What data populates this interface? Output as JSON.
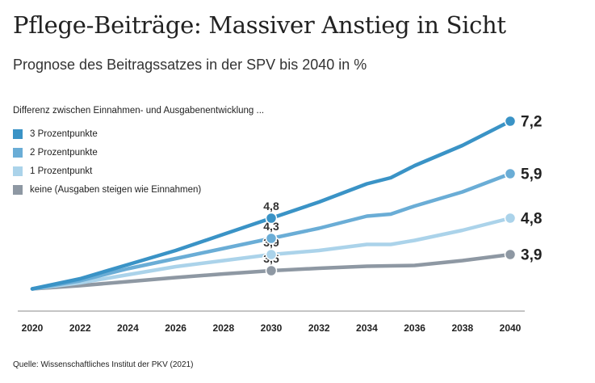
{
  "title": "Pflege-Beiträge: Massiver Anstieg in Sicht",
  "subtitle": "Prognose des Beitragssatzes in der SPV bis 2040 in %",
  "legend_title": "Differenz zwischen Einnahmen- und Ausgabenentwicklung ...",
  "source": "Quelle: Wissenschaftliches Institut der PKV (2021)",
  "colors": {
    "series": [
      "#3a93c6",
      "#6aadd6",
      "#abd3ea",
      "#8e98a3"
    ],
    "axis": "#888888",
    "text": "#222222"
  },
  "chart_data": {
    "type": "line",
    "title": "Pflege-Beiträge: Massiver Anstieg in Sicht",
    "subtitle": "Prognose des Beitragssatzes in der SPV bis 2040 in %",
    "xlabel": "",
    "ylabel": "",
    "xlim": [
      2020,
      2040
    ],
    "ylim": [
      2.5,
      8.0
    ],
    "x_ticks": [
      "2020",
      "2022",
      "2024",
      "2026",
      "2028",
      "2030",
      "2032",
      "2034",
      "2036",
      "2038",
      "2040"
    ],
    "grid": false,
    "legend_position": "top-left",
    "x": [
      2020,
      2022,
      2024,
      2026,
      2028,
      2030,
      2032,
      2034,
      2035,
      2036,
      2038,
      2040
    ],
    "series": [
      {
        "name": "3 Prozentpunkte",
        "values": [
          3.05,
          3.3,
          3.65,
          4.0,
          4.4,
          4.8,
          5.2,
          5.65,
          5.8,
          6.1,
          6.6,
          7.2
        ],
        "labels": [
          {
            "x": 2030,
            "text": "4,8"
          },
          {
            "x": 2040,
            "text": "7,2"
          }
        ]
      },
      {
        "name": "2 Prozentpunkte",
        "values": [
          3.05,
          3.25,
          3.55,
          3.8,
          4.05,
          4.3,
          4.55,
          4.85,
          4.9,
          5.1,
          5.45,
          5.9
        ],
        "labels": [
          {
            "x": 2030,
            "text": "4,3"
          },
          {
            "x": 2040,
            "text": "5,9"
          }
        ]
      },
      {
        "name": "1 Prozentpunkt",
        "values": [
          3.05,
          3.2,
          3.4,
          3.6,
          3.75,
          3.9,
          4.0,
          4.15,
          4.15,
          4.25,
          4.5,
          4.8
        ],
        "labels": [
          {
            "x": 2030,
            "text": "3,9"
          },
          {
            "x": 2040,
            "text": "4,8"
          }
        ]
      },
      {
        "name": "keine (Ausgaben steigen wie Einnahmen)",
        "values": [
          3.05,
          3.13,
          3.23,
          3.33,
          3.42,
          3.5,
          3.56,
          3.61,
          3.62,
          3.63,
          3.75,
          3.9
        ],
        "labels": [
          {
            "x": 2030,
            "text": "3,5"
          },
          {
            "x": 2040,
            "text": "3,9"
          }
        ]
      }
    ]
  }
}
